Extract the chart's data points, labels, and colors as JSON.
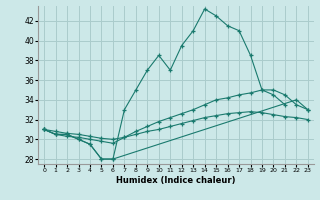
{
  "xlabel": "Humidex (Indice chaleur)",
  "ylabel": "",
  "bg_color": "#cce8e8",
  "line_color": "#1a7a6e",
  "grid_color": "#aacccc",
  "xlim": [
    -0.5,
    23.5
  ],
  "ylim": [
    27.5,
    43.5
  ],
  "yticks": [
    28,
    30,
    32,
    34,
    36,
    38,
    40,
    42
  ],
  "xticks": [
    0,
    1,
    2,
    3,
    4,
    5,
    6,
    7,
    8,
    9,
    10,
    11,
    12,
    13,
    14,
    15,
    16,
    17,
    18,
    19,
    20,
    21,
    22,
    23
  ],
  "series": [
    {
      "x": [
        0,
        1,
        2,
        3,
        4,
        5,
        6,
        7,
        8,
        9,
        10,
        11,
        12,
        13,
        14,
        15,
        16,
        17,
        18,
        19,
        20,
        21
      ],
      "y": [
        31,
        30.5,
        30.5,
        30,
        29.5,
        28,
        28,
        33,
        35,
        37,
        38.5,
        37,
        39.5,
        41,
        43.2,
        42.5,
        41.5,
        41,
        38.5,
        35,
        34.5,
        33.5
      ]
    },
    {
      "x": [
        0,
        1,
        2,
        3,
        4,
        5,
        6,
        22,
        23
      ],
      "y": [
        31,
        30.5,
        30.5,
        30,
        29.5,
        28,
        28,
        34,
        33
      ]
    },
    {
      "x": [
        0,
        1,
        2,
        3,
        4,
        5,
        6,
        7,
        8,
        9,
        10,
        11,
        12,
        13,
        14,
        15,
        16,
        17,
        18,
        19,
        20,
        21,
        22,
        23
      ],
      "y": [
        31,
        30.5,
        30.3,
        30.2,
        30,
        29.8,
        29.6,
        30.2,
        30.8,
        31.3,
        31.8,
        32.2,
        32.6,
        33.0,
        33.5,
        34.0,
        34.2,
        34.5,
        34.7,
        35.0,
        35.0,
        34.5,
        33.5,
        33.0
      ]
    },
    {
      "x": [
        0,
        1,
        2,
        3,
        4,
        5,
        6,
        7,
        8,
        9,
        10,
        11,
        12,
        13,
        14,
        15,
        16,
        17,
        18,
        19,
        20,
        21,
        22,
        23
      ],
      "y": [
        31,
        30.8,
        30.6,
        30.5,
        30.3,
        30.1,
        30.0,
        30.2,
        30.5,
        30.8,
        31.0,
        31.3,
        31.6,
        31.9,
        32.2,
        32.4,
        32.6,
        32.7,
        32.8,
        32.7,
        32.5,
        32.3,
        32.2,
        32.0
      ]
    }
  ]
}
